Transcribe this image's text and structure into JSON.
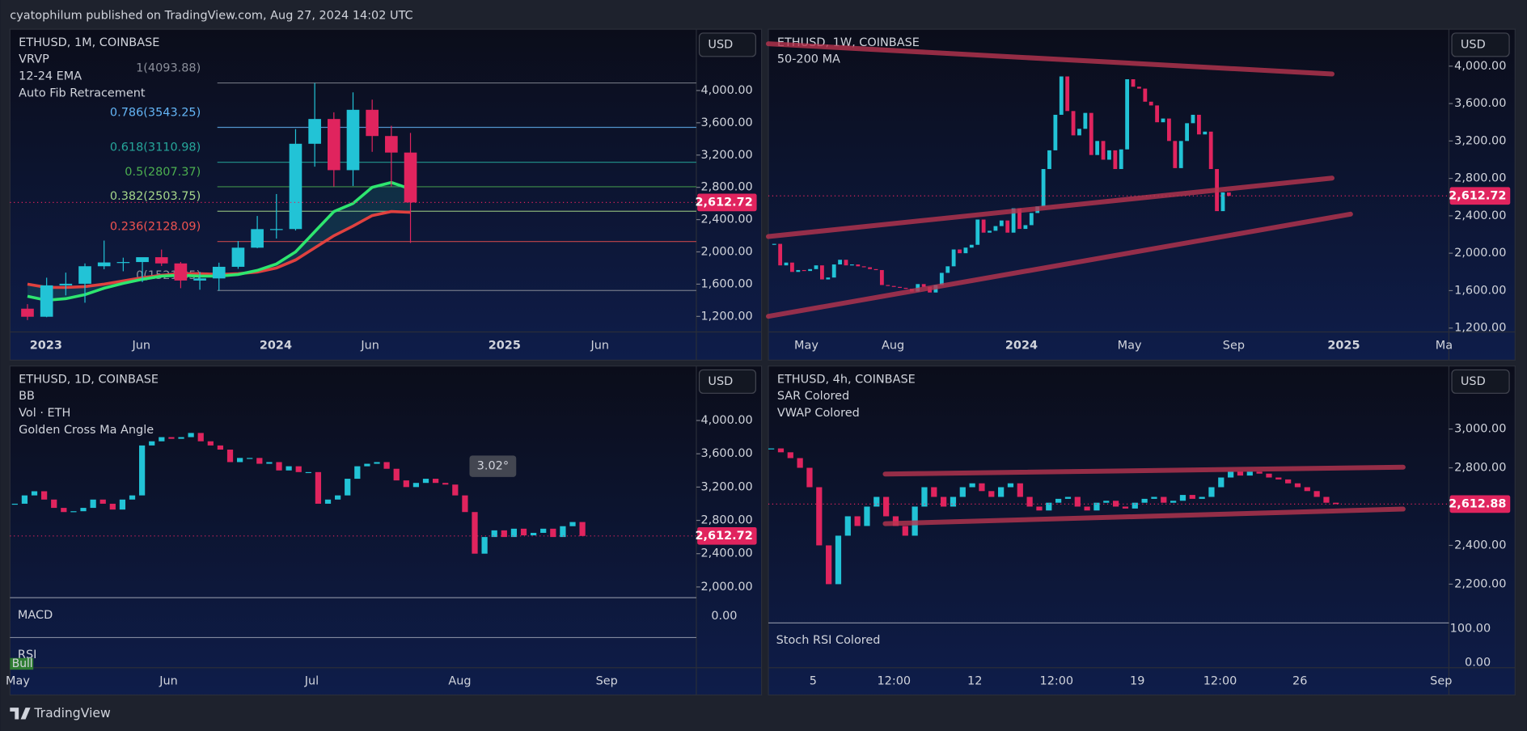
{
  "header": {
    "publisher": "cyatophilum published on TradingView.com, Aug 27, 2024 14:02 UTC"
  },
  "footer": {
    "brand": "TradingView"
  },
  "panels": [
    {
      "symbol": "ETHUSD, 1M, COINBASE",
      "indicators": [
        "VRVP",
        "12-24 EMA",
        "Auto Fib Retracement"
      ],
      "currency": "USD",
      "ylim": [
        1020,
        4760
      ],
      "yticks": [
        {
          "value": 1200,
          "label": "1,200.00"
        },
        {
          "value": 1600,
          "label": "1,600.00"
        },
        {
          "value": 2000,
          "label": "2,000.00"
        },
        {
          "value": 2400,
          "label": "2,400.00"
        },
        {
          "value": 2800,
          "label": "2,800.00"
        },
        {
          "value": 3200,
          "label": "3,200.00"
        },
        {
          "value": 3600,
          "label": "3,600.00"
        },
        {
          "value": 4000,
          "label": "4,000.00"
        }
      ],
      "time_labels": [
        "2023",
        "Jun",
        "2024",
        "Jun",
        "2025",
        "Jun"
      ],
      "last_price": {
        "value": 2612.72,
        "label": "2,612.72"
      },
      "up_color": "#22c3d6",
      "down_color": "#e0245e",
      "candles": [
        [
          1296,
          1352,
          1155,
          1196
        ],
        [
          1196,
          1680,
          1190,
          1585
        ],
        [
          1585,
          1743,
          1460,
          1605
        ],
        [
          1605,
          1857,
          1370,
          1822
        ],
        [
          1822,
          2140,
          1785,
          1869
        ],
        [
          1869,
          1928,
          1760,
          1874
        ],
        [
          1874,
          1930,
          1626,
          1934
        ],
        [
          1934,
          2029,
          1825,
          1857
        ],
        [
          1857,
          1875,
          1550,
          1645
        ],
        [
          1645,
          1753,
          1531,
          1671
        ],
        [
          1671,
          1866,
          1521,
          1815
        ],
        [
          1815,
          2134,
          1790,
          2052
        ],
        [
          2052,
          2445,
          2046,
          2282
        ],
        [
          2282,
          2717,
          2165,
          2283
        ],
        [
          2283,
          3522,
          2265,
          3340
        ],
        [
          3340,
          4093,
          3056,
          3647
        ],
        [
          3647,
          3730,
          2810,
          3013
        ],
        [
          3013,
          3977,
          2817,
          3761
        ],
        [
          3761,
          3887,
          3240,
          3436
        ],
        [
          3436,
          3563,
          2810,
          3231
        ],
        [
          3231,
          3475,
          2111,
          2612.72
        ]
      ],
      "ema_fast": {
        "color": "#2ee66f",
        "values": [
          1450,
          1400,
          1420,
          1470,
          1550,
          1610,
          1660,
          1700,
          1710,
          1700,
          1700,
          1720,
          1770,
          1850,
          2000,
          2250,
          2500,
          2600,
          2800,
          2860,
          2780
        ]
      },
      "ema_slow": {
        "color": "#e0413f",
        "values": [
          1600,
          1560,
          1560,
          1570,
          1600,
          1640,
          1680,
          1710,
          1730,
          1730,
          1720,
          1730,
          1750,
          1800,
          1900,
          2050,
          2200,
          2320,
          2450,
          2500,
          2490
        ]
      },
      "fib": [
        {
          "label": "1(4093.88)",
          "value": 4093.88,
          "color": "#8a8e99"
        },
        {
          "label": "0.786(3543.25)",
          "value": 3543.25,
          "color": "#64b5f6"
        },
        {
          "label": "0.618(3110.98)",
          "value": 3110.98,
          "color": "#26a69a"
        },
        {
          "label": "0.5(2807.37)",
          "value": 2807.37,
          "color": "#4caf50"
        },
        {
          "label": "0.382(2503.75)",
          "value": 2503.75,
          "color": "#a5d68a"
        },
        {
          "label": "0.236(2128.09)",
          "value": 2128.09,
          "color": "#f05350"
        },
        {
          "label": "0(1521.35)",
          "value": 1521.35,
          "color": "#8a8e99"
        }
      ]
    },
    {
      "symbol": "ETHUSD, 1W, COINBASE",
      "indicators": [
        "50-200 MA"
      ],
      "currency": "USD",
      "ylim": [
        1169,
        4395
      ],
      "yticks": [
        {
          "value": 1200,
          "label": "1,200.00"
        },
        {
          "value": 1600,
          "label": "1,600.00"
        },
        {
          "value": 2000,
          "label": "2,000.00"
        },
        {
          "value": 2400,
          "label": "2,400.00"
        },
        {
          "value": 2800,
          "label": "2,800.00"
        },
        {
          "value": 3200,
          "label": "3,200.00"
        },
        {
          "value": 3600,
          "label": "3,600.00"
        },
        {
          "value": 4000,
          "label": "4,000.00"
        }
      ],
      "time_labels": [
        "May",
        "Aug",
        "2024",
        "May",
        "Sep",
        "2025",
        "Ma"
      ],
      "last_price": {
        "value": 2612.72,
        "label": "2,612.72"
      },
      "up_color": "#22c3d6",
      "down_color": "#e0245e",
      "closes": [
        2100,
        1870,
        1900,
        1800,
        1820,
        1810,
        1830,
        1870,
        1720,
        1740,
        1880,
        1930,
        1870,
        1880,
        1860,
        1850,
        1830,
        1820,
        1660,
        1650,
        1640,
        1630,
        1620,
        1590,
        1670,
        1640,
        1580,
        1660,
        1790,
        1860,
        2040,
        2000,
        2060,
        2090,
        2360,
        2220,
        2240,
        2290,
        2350,
        2220,
        2480,
        2260,
        2300,
        2430,
        2500,
        2900,
        3100,
        3480,
        3890,
        3520,
        3260,
        3330,
        3500,
        3050,
        3200,
        3000,
        3100,
        2900,
        3110,
        3860,
        3780,
        3760,
        3620,
        3580,
        3400,
        3440,
        3200,
        2910,
        3200,
        3390,
        3480,
        3270,
        3300,
        2900,
        2450,
        2650,
        2612.72
      ]
    },
    {
      "symbol": "ETHUSD, 1D, COINBASE",
      "indicators": [
        "BB",
        "Vol · ETH",
        "Golden Cross Ma Angle"
      ],
      "currency": "USD",
      "ylim": [
        1895,
        4608
      ],
      "yticks": [
        {
          "value": 2000,
          "label": "2,000.00"
        },
        {
          "value": 2400,
          "label": "2,400.00"
        },
        {
          "value": 2800,
          "label": "2,800.00"
        },
        {
          "value": 3200,
          "label": "3,200.00"
        },
        {
          "value": 3600,
          "label": "3,600.00"
        },
        {
          "value": 4000,
          "label": "4,000.00"
        }
      ],
      "time_labels": [
        "May",
        "Jun",
        "Jul",
        "Aug",
        "Sep"
      ],
      "last_price": {
        "value": 2612.72,
        "label": "2,612.72"
      },
      "annotation": "3.02°",
      "subpanes": [
        {
          "label": "MACD",
          "axis_labels": [
            "0.00"
          ]
        },
        {
          "label": "RSI",
          "badge": "Bull",
          "axis_labels": []
        }
      ],
      "up_color": "#22c3d6",
      "down_color": "#e0245e",
      "closes": [
        3000,
        3100,
        3150,
        3050,
        2950,
        2900,
        2910,
        2950,
        3050,
        3000,
        2930,
        3050,
        3100,
        3700,
        3750,
        3800,
        3780,
        3800,
        3850,
        3750,
        3700,
        3650,
        3500,
        3550,
        3550,
        3480,
        3500,
        3400,
        3450,
        3380,
        3380,
        3000,
        3050,
        3100,
        3300,
        3450,
        3480,
        3500,
        3420,
        3280,
        3200,
        3250,
        3300,
        3250,
        3230,
        3100,
        2900,
        2400,
        2600,
        2680,
        2600,
        2700,
        2620,
        2650,
        2700,
        2600,
        2730,
        2780,
        2612.72
      ]
    },
    {
      "symbol": "ETHUSD, 4h, COINBASE",
      "indicators": [
        "SAR Colored",
        "VWAP Colored"
      ],
      "currency": "USD",
      "ylim": [
        2015,
        3305
      ],
      "yticks": [
        {
          "value": 2200,
          "label": "2,200.00"
        },
        {
          "value": 2400,
          "label": "2,400.00"
        },
        {
          "value": 2800,
          "label": "2,800.00"
        },
        {
          "value": 3000,
          "label": "3,000.00"
        }
      ],
      "time_labels": [
        "5",
        "12:00",
        "12",
        "12:00",
        "19",
        "12:00",
        "26",
        "Sep"
      ],
      "last_price": {
        "value": 2612.88,
        "label": "2,612.88"
      },
      "subpanes": [
        {
          "label": "Stoch RSI Colored",
          "axis_labels": [
            "100.00",
            "0.00"
          ]
        }
      ],
      "up_color": "#22c3d6",
      "down_color": "#e0245e",
      "closes": [
        2900,
        2880,
        2850,
        2800,
        2700,
        2400,
        2200,
        2450,
        2550,
        2500,
        2600,
        2650,
        2550,
        2500,
        2450,
        2600,
        2700,
        2650,
        2600,
        2650,
        2700,
        2720,
        2680,
        2650,
        2700,
        2720,
        2650,
        2600,
        2580,
        2620,
        2640,
        2650,
        2600,
        2580,
        2620,
        2630,
        2600,
        2590,
        2620,
        2640,
        2650,
        2620,
        2630,
        2660,
        2640,
        2650,
        2700,
        2750,
        2780,
        2760,
        2780,
        2770,
        2750,
        2740,
        2720,
        2700,
        2680,
        2650,
        2620,
        2612.88
      ]
    }
  ]
}
